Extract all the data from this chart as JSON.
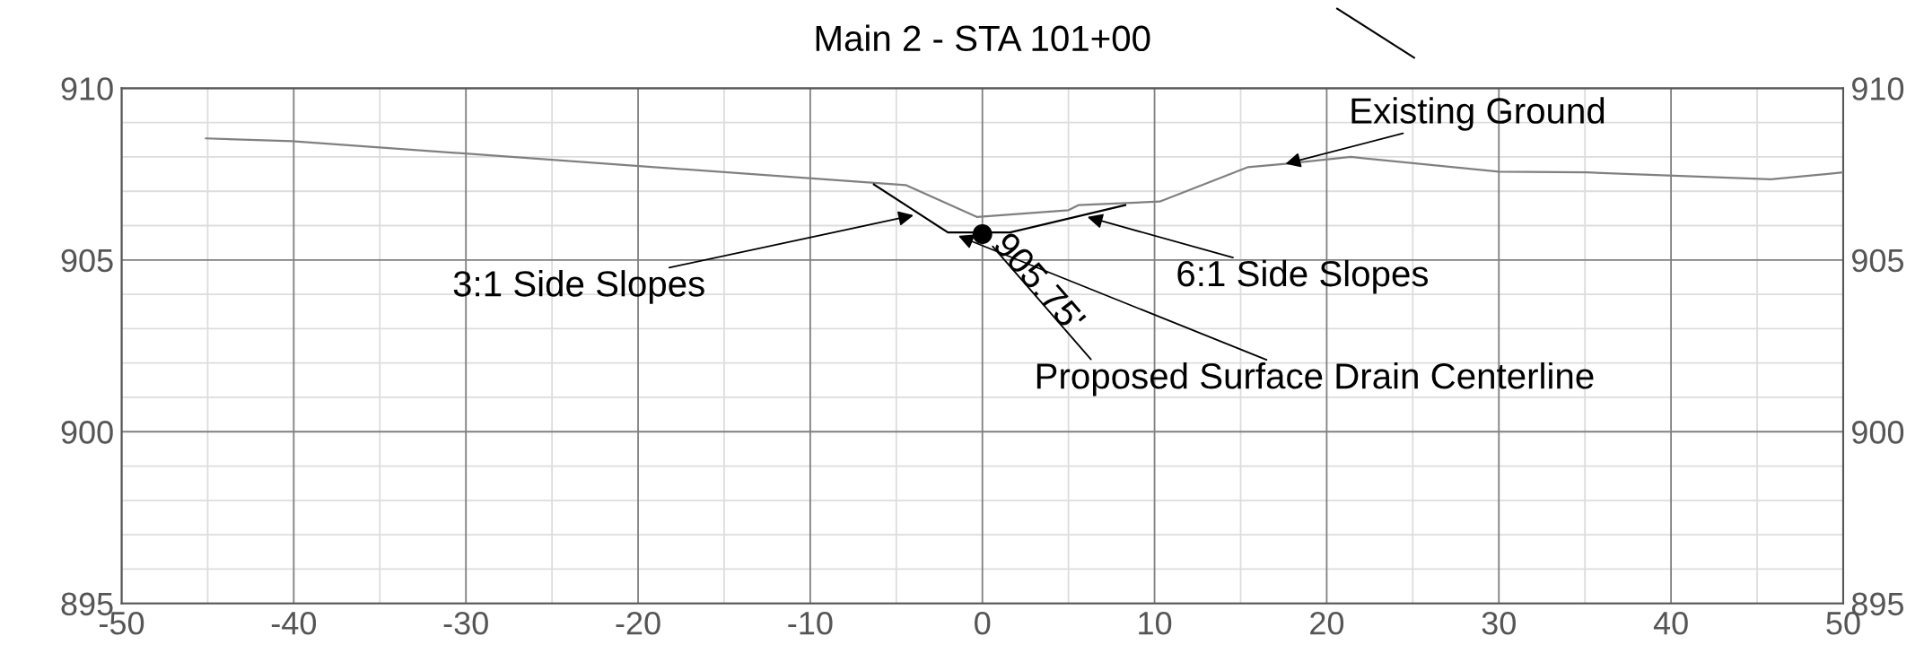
{
  "chart_data": {
    "type": "line",
    "title": "Main 2 - STA 101+00",
    "xlim": [
      -50,
      50
    ],
    "xticks": [
      -50,
      {
        "value": -45,
        "label": null
      },
      -40,
      {
        "value": -35,
        "label": null
      },
      -30,
      {
        "value": -25,
        "label": null
      },
      -20,
      {
        "value": -15,
        "label": null
      },
      -10,
      {
        "value": -5,
        "label": null
      },
      0,
      {
        "value": 5,
        "label": null
      },
      10,
      {
        "value": 15,
        "label": null
      },
      20,
      {
        "value": 25,
        "label": null
      },
      30,
      {
        "value": 35,
        "label": null
      },
      40,
      {
        "value": 45,
        "label": null
      },
      50
    ],
    "ylim": [
      895,
      910
    ],
    "yticks": [
      895,
      {
        "value": 896,
        "label": null
      },
      {
        "value": 897,
        "label": null
      },
      {
        "value": 898,
        "label": null
      },
      {
        "value": 899,
        "label": null
      },
      900,
      {
        "value": 901,
        "label": null
      },
      {
        "value": 902,
        "label": null
      },
      {
        "value": 903,
        "label": null
      },
      {
        "value": 904,
        "label": null
      },
      905,
      {
        "value": 906,
        "label": null
      },
      {
        "value": 907,
        "label": null
      },
      {
        "value": 908,
        "label": null
      },
      {
        "value": 909,
        "label": null
      },
      910
    ],
    "y2lim": [
      895,
      910
    ],
    "y2ticks": [
      895,
      900,
      905,
      910
    ],
    "grid": true,
    "series": [
      {
        "color": "#808080",
        "x": [
          -45.1,
          -40.1,
          -4.45,
          -0.3,
          5.0,
          5.6,
          10.3,
          15.4,
          17.6,
          21.4,
          30.0,
          35.1,
          45.8,
          50.0
        ],
        "values": [
          908.54,
          908.46,
          907.18,
          906.25,
          906.45,
          906.6,
          906.7,
          907.7,
          907.8,
          908.0,
          907.57,
          907.55,
          907.35,
          907.55
        ]
      },
      {
        "color": "#000000",
        "x": [
          -6.3,
          -2.0,
          1.6,
          8.3
        ],
        "values": [
          907.2,
          905.8,
          905.8,
          906.6
        ]
      },
      {
        "type": "scatter",
        "color": "#000000",
        "marker": "circle",
        "x": [
          0
        ],
        "values": [
          905.75
        ],
        "value_labels": [
          "905.75'"
        ]
      }
    ],
    "annotations": [
      {
        "text": "3:1 Side Slopes",
        "x": -4,
        "y": 906.3
      },
      {
        "text": "6:1 Side Slopes",
        "x": 6.1,
        "y": 906.25
      },
      {
        "text": "Existing Ground",
        "x": 17.6,
        "y": 907.8
      },
      {
        "text": "Proposed Surface Drain Centerline",
        "x": -1.4,
        "y": 905.7
      }
    ]
  }
}
